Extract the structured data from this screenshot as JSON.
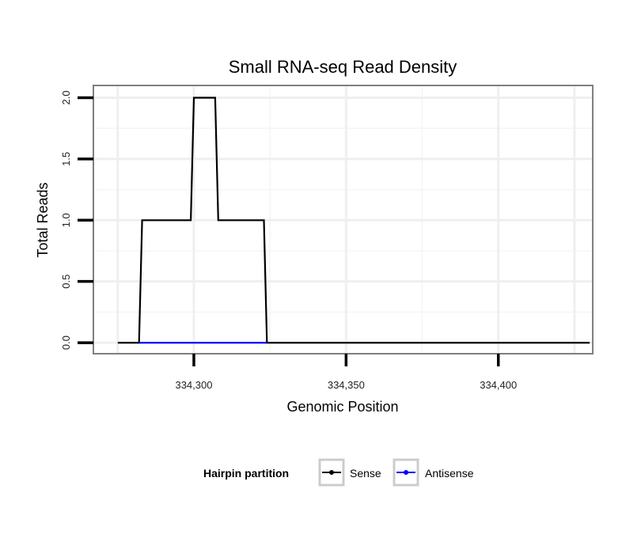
{
  "chart_data": {
    "type": "line",
    "title": "Small RNA-seq Read Density",
    "xlabel": "Genomic Position",
    "ylabel": "Total Reads",
    "xlim": [
      334267,
      334431
    ],
    "ylim": [
      -0.09,
      2.1
    ],
    "x_ticks": [
      334300,
      334350,
      334400
    ],
    "x_tick_labels": [
      "334,300",
      "334,350",
      "334,400"
    ],
    "y_ticks": [
      0,
      0.5,
      1,
      1.5,
      2
    ],
    "y_tick_labels": [
      "0.0",
      "0.5",
      "1.0",
      "1.5",
      "2.0"
    ],
    "grid": true,
    "legend": {
      "title": "Hairpin partition",
      "position": "bottom",
      "entries": [
        "Sense",
        "Antisense"
      ]
    },
    "series": [
      {
        "name": "Sense",
        "color": "#000000",
        "x": [
          334275,
          334282,
          334283,
          334299,
          334300,
          334307,
          334308,
          334323,
          334324,
          334430
        ],
        "y": [
          0,
          0,
          1,
          1,
          2,
          2,
          1,
          1,
          0,
          0
        ]
      },
      {
        "name": "Antisense",
        "color": "#0000ff",
        "x": [
          334282,
          334324
        ],
        "y": [
          0,
          0
        ]
      }
    ]
  }
}
